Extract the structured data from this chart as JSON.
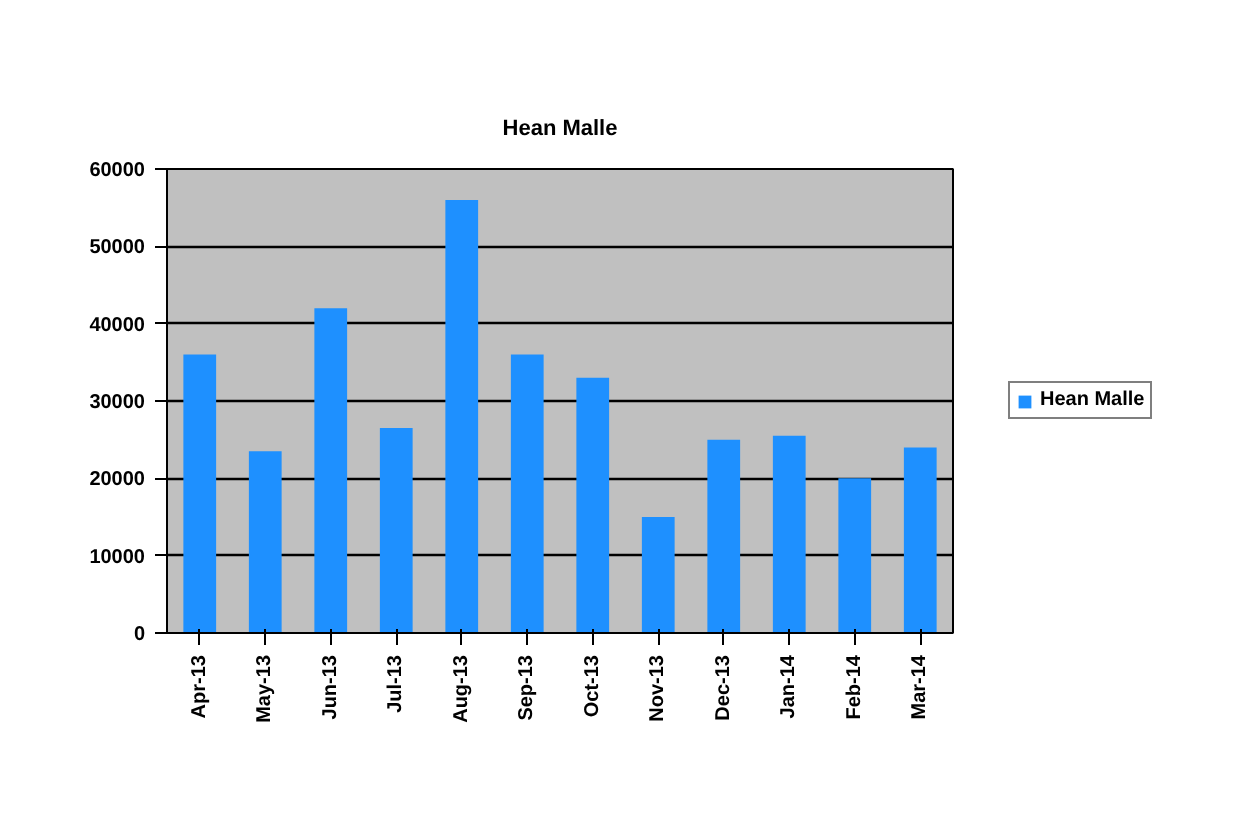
{
  "chart_data": {
    "type": "bar",
    "title": "Hean Malle",
    "categories": [
      "Apr-13",
      "May-13",
      "Jun-13",
      "Jul-13",
      "Aug-13",
      "Sep-13",
      "Oct-13",
      "Nov-13",
      "Dec-13",
      "Jan-14",
      "Feb-14",
      "Mar-14"
    ],
    "series": [
      {
        "name": "Hean Malle",
        "color": "#1e90ff",
        "values": [
          36000,
          23500,
          42000,
          26500,
          56000,
          36000,
          33000,
          15000,
          25000,
          25500,
          20000,
          24000
        ]
      }
    ],
    "ylim": [
      0,
      60000
    ],
    "yticks": [
      0,
      10000,
      20000,
      30000,
      40000,
      50000,
      60000
    ],
    "grid": "y",
    "legend": "right"
  }
}
